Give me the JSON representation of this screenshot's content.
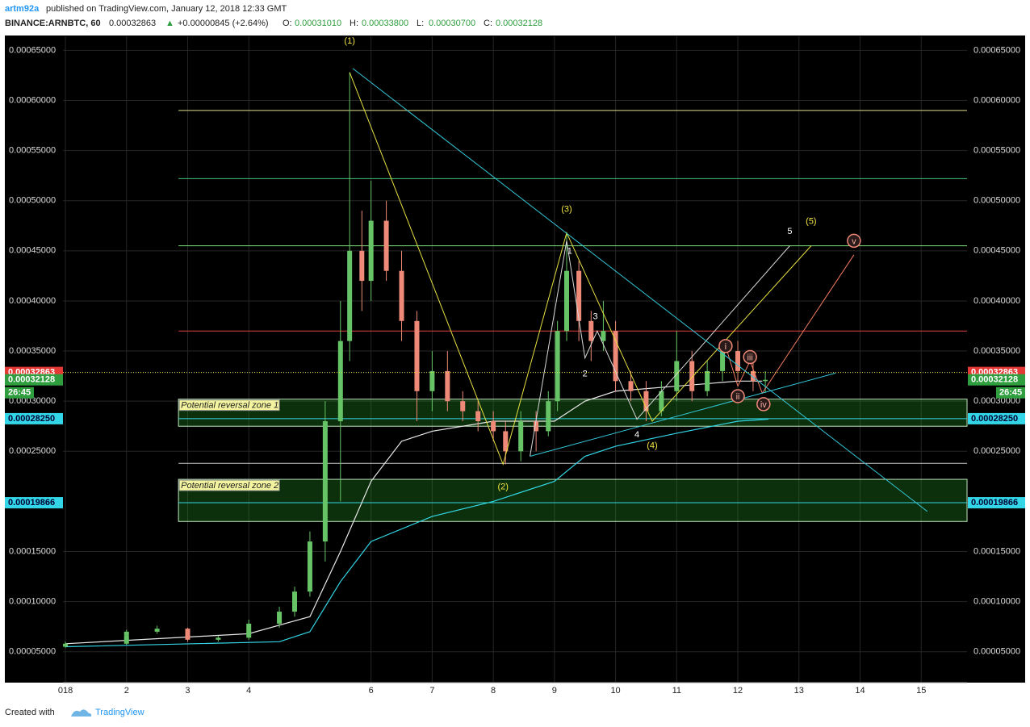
{
  "header": {
    "user": "artm92a",
    "published": "published on TradingView.com, January 12, 2018 12:33 GMT",
    "symbol": "BINANCE:ARNBTC, 60",
    "last": "0.00032863",
    "arrow": "▲",
    "change": "+0.00000845 (+2.64%)",
    "ohlc": [
      {
        "key": "O:",
        "value": "0.00031010"
      },
      {
        "key": "H:",
        "value": "0.00033800"
      },
      {
        "key": "L:",
        "value": "0.00030700"
      },
      {
        "key": "C:",
        "value": "0.00032128"
      }
    ]
  },
  "footer": {
    "created": "Created with",
    "brand": "TradingView"
  },
  "chart_data": {
    "type": "candlestick",
    "up_color": "#66c466",
    "down_color": "#f08a78",
    "grid": true,
    "xlim": [
      0.96,
      15.75
    ],
    "ylim": [
      2e-05,
      0.000664
    ],
    "xticks": [
      {
        "value": 1,
        "label": "018"
      },
      2,
      3,
      4,
      6,
      7,
      8,
      9,
      10,
      11,
      12,
      13,
      14,
      15
    ],
    "yticks": [
      {
        "value": 0.00065,
        "label": "0.00065000"
      },
      {
        "value": 0.0006,
        "label": "0.00060000"
      },
      {
        "value": 0.00055,
        "label": "0.00055000"
      },
      {
        "value": 0.0005,
        "label": "0.00050000"
      },
      {
        "value": 0.00045,
        "label": "0.00045000"
      },
      {
        "value": 0.0004,
        "label": "0.00040000"
      },
      {
        "value": 0.00035,
        "label": "0.00035000"
      },
      {
        "value": 0.0003,
        "label": "0.00030000"
      },
      {
        "value": 0.00025,
        "label": "0.00025000"
      },
      {
        "value": 0.00015,
        "label": "0.00015000"
      },
      {
        "value": 0.0001,
        "label": "0.00010000"
      },
      {
        "value": 5e-05,
        "label": "0.00005000"
      }
    ],
    "x": [
      1,
      2,
      2,
      2.5,
      3,
      3.5,
      4,
      4.5,
      4.75,
      5,
      5.25,
      5.5,
      5.65,
      5.85,
      6,
      6.25,
      6.5,
      6.75,
      7,
      7.25,
      7.5,
      7.75,
      8,
      8.2,
      8.45,
      8.7,
      8.9,
      9.05,
      9.2,
      9.4,
      9.6,
      9.8,
      10,
      10.25,
      10.5,
      10.75,
      11,
      11.25,
      11.5,
      11.75,
      12,
      12.25,
      12.45
    ],
    "open": [
      5.5e-05,
      5.8e-05,
      6.6e-05,
      7e-05,
      7.3e-05,
      6.2e-05,
      6.4e-05,
      7.8e-05,
      9e-05,
      0.00011,
      0.00016,
      0.00028,
      0.00036,
      0.00045,
      0.00042,
      0.00048,
      0.00043,
      0.00038,
      0.00031,
      0.00033,
      0.0003,
      0.00029,
      0.00028,
      0.00027,
      0.00025,
      0.00028,
      0.00027,
      0.0003,
      0.00037,
      0.00043,
      0.00038,
      0.00036,
      0.00037,
      0.00032,
      0.00031,
      0.00029,
      0.00031,
      0.00034,
      0.00031,
      0.00033,
      0.00035,
      0.00033,
      0.00032
    ],
    "high": [
      6e-05,
      6.8e-05,
      7.2e-05,
      7.6e-05,
      7.4e-05,
      6.6e-05,
      8.2e-05,
      9.5e-05,
      0.000115,
      0.00017,
      0.0003,
      0.0004,
      0.000628,
      0.00049,
      0.00052,
      0.0005,
      0.00045,
      0.00039,
      0.00035,
      0.00035,
      0.00031,
      0.0003,
      0.00029,
      0.00028,
      0.00029,
      0.00029,
      0.00031,
      0.00038,
      0.000468,
      0.00044,
      0.00039,
      0.0004,
      0.00038,
      0.00033,
      0.00032,
      0.00032,
      0.00037,
      0.00035,
      0.00034,
      0.000355,
      0.00036,
      0.00034,
      0.00033
    ],
    "low": [
      5.4e-05,
      5.7e-05,
      6.4e-05,
      6.8e-05,
      6e-05,
      6e-05,
      6.2e-05,
      7.4e-05,
      8.5e-05,
      0.000105,
      0.00014,
      0.0002,
      0.00034,
      0.00039,
      0.0004,
      0.00042,
      0.00036,
      0.00028,
      0.00029,
      0.00029,
      0.00028,
      0.00027,
      0.00026,
      0.000237,
      0.00024,
      0.00025,
      0.000265,
      0.00029,
      0.00036,
      0.00036,
      0.00034,
      0.00035,
      0.00031,
      0.0003,
      0.00028,
      0.000285,
      0.0003,
      0.0003,
      0.000305,
      0.00032,
      0.00032,
      0.00031,
      0.000308
    ],
    "close": [
      5.8e-05,
      6.6e-05,
      7e-05,
      7.3e-05,
      6.2e-05,
      6.4e-05,
      7.8e-05,
      9e-05,
      0.00011,
      0.00016,
      0.00028,
      0.00036,
      0.00045,
      0.00042,
      0.00048,
      0.00043,
      0.00038,
      0.00031,
      0.00033,
      0.0003,
      0.00029,
      0.00028,
      0.00027,
      0.00025,
      0.00028,
      0.00027,
      0.0003,
      0.00037,
      0.00043,
      0.00038,
      0.00036,
      0.00037,
      0.00032,
      0.00031,
      0.00029,
      0.00031,
      0.00034,
      0.00031,
      0.00033,
      0.00035,
      0.00033,
      0.00032,
      0.00032128
    ],
    "moving_averages": [
      {
        "color": "#e8e8e8",
        "x": [
          1,
          4,
          5,
          5.5,
          6,
          6.5,
          7,
          8,
          9,
          9.5,
          10,
          11,
          12,
          12.4
        ],
        "y": [
          5.8e-05,
          6.8e-05,
          8.5e-05,
          0.00015,
          0.00022,
          0.00026,
          0.00027,
          0.00028,
          0.00028,
          0.0003,
          0.00031,
          0.000315,
          0.00032,
          0.00032
        ]
      },
      {
        "color": "#33d6e6",
        "x": [
          1,
          4.5,
          5,
          5.5,
          6,
          7,
          8,
          9,
          9.5,
          10,
          11,
          12,
          12.5
        ],
        "y": [
          5.5e-05,
          6e-05,
          7e-05,
          0.00012,
          0.00016,
          0.000185,
          0.0002,
          0.00022,
          0.000245,
          0.000255,
          0.000268,
          0.00028,
          0.000282
        ]
      }
    ],
    "levels": [
      {
        "value": 0.00059,
        "color": "#e0e08a"
      },
      {
        "value": 0.000522,
        "color": "#3fbf7f"
      },
      {
        "value": 0.000455,
        "color": "#7fdf7f"
      },
      {
        "value": 0.00037,
        "color": "#e04040"
      },
      {
        "value": 0.0002825,
        "color": "#33d6e6"
      },
      {
        "value": 0.000238,
        "color": "#cccccc"
      },
      {
        "value": 0.00019866,
        "color": "#33d6e6"
      }
    ],
    "zones": [
      {
        "label": "Potential reversal zone 1",
        "x_start": 2.85,
        "top": 0.000302,
        "bottom": 0.000275
      },
      {
        "label": "Potential reversal zone 2",
        "x_start": 2.85,
        "top": 0.000222,
        "bottom": 0.00018
      }
    ],
    "lines": [
      {
        "color": "#e6e040",
        "x": [
          5.65,
          8.16,
          9.2,
          10.6,
          13.2
        ],
        "y": [
          0.000628,
          0.000237,
          0.000468,
          0.00028,
          0.000455
        ]
      },
      {
        "color": "#d8d8d8",
        "x": [
          8.6,
          9.2,
          9.5,
          9.7,
          10.35,
          12.85
        ],
        "y": [
          0.000245,
          0.00046,
          0.000343,
          0.00037,
          0.000282,
          0.000455
        ]
      },
      {
        "color": "#f07a60",
        "x": [
          11.8,
          12.0,
          12.2,
          12.4,
          13.9
        ],
        "y": [
          0.000355,
          0.000315,
          0.00034,
          0.000308,
          0.000446
        ]
      },
      {
        "color": "#33c6d6",
        "x": [
          5.7,
          15.1
        ],
        "y": [
          0.000632,
          0.00019
        ]
      },
      {
        "color": "#33c6d6",
        "x": [
          8.6,
          13.6
        ],
        "y": [
          0.000245,
          0.000328
        ]
      }
    ],
    "wave_labels": [
      {
        "text": "(1)",
        "x": 5.65,
        "y": 0.00066,
        "style": "major"
      },
      {
        "text": "(2)",
        "x": 8.16,
        "y": 0.000215,
        "style": "major"
      },
      {
        "text": "(3)",
        "x": 9.2,
        "y": 0.000492,
        "style": "major"
      },
      {
        "text": "(4)",
        "x": 10.6,
        "y": 0.000256,
        "style": "major"
      },
      {
        "text": "(5)",
        "x": 13.2,
        "y": 0.00048,
        "style": "major"
      },
      {
        "text": "1",
        "x": 9.25,
        "y": 0.00045,
        "style": "minor"
      },
      {
        "text": "2",
        "x": 9.5,
        "y": 0.000328,
        "style": "minor"
      },
      {
        "text": "3",
        "x": 9.67,
        "y": 0.000385,
        "style": "minor"
      },
      {
        "text": "4",
        "x": 10.35,
        "y": 0.000267,
        "style": "minor"
      },
      {
        "text": "5",
        "x": 12.85,
        "y": 0.00047,
        "style": "minor"
      },
      {
        "text": "i",
        "x": 11.8,
        "y": 0.000355,
        "style": "roman"
      },
      {
        "text": "ii",
        "x": 12.0,
        "y": 0.000305,
        "style": "roman"
      },
      {
        "text": "iii",
        "x": 12.2,
        "y": 0.000344,
        "style": "roman"
      },
      {
        "text": "iv",
        "x": 12.42,
        "y": 0.000297,
        "style": "roman"
      },
      {
        "text": "v",
        "x": 13.9,
        "y": 0.00046,
        "style": "roman"
      }
    ],
    "badges": [
      {
        "value": 0.00032863,
        "label": "0.00032863",
        "color": "#e53935"
      },
      {
        "value": 0.00032128,
        "label": "0.00032128",
        "color": "#2e9e3e"
      },
      {
        "value": 0.0002825,
        "label": "0.00028250",
        "color": "#33d6e6"
      },
      {
        "value": 0.00019866,
        "label": "0.00019866",
        "color": "#33d6e6"
      }
    ],
    "countdown": "26:45"
  }
}
